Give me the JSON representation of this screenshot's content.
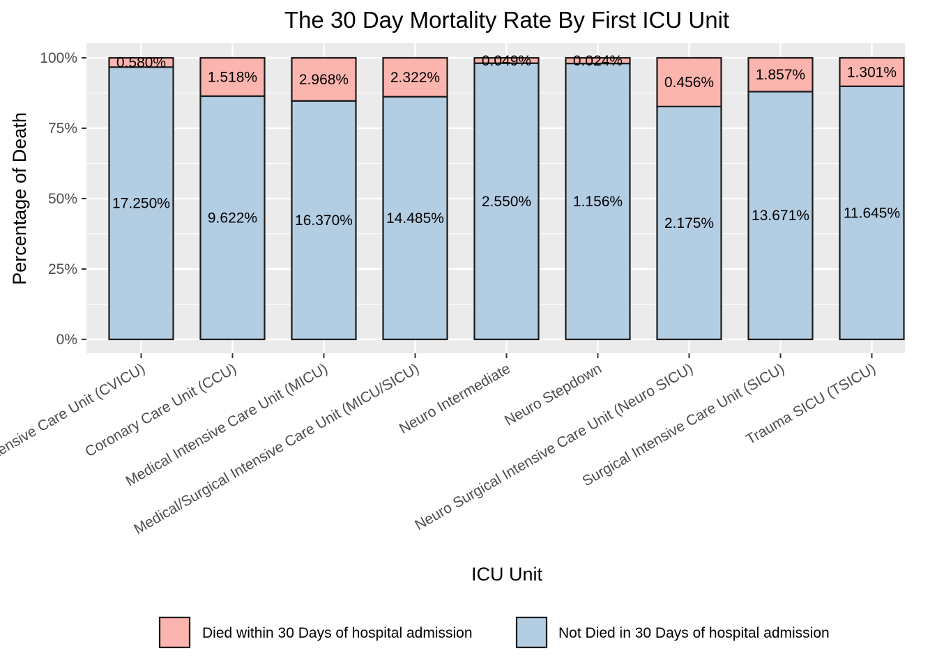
{
  "chart_data": {
    "type": "bar",
    "stacked": true,
    "percent_stacked": true,
    "title": "The 30 Day Mortality Rate By First ICU Unit",
    "xlabel": "ICU Unit",
    "ylabel": "Percentage of Death",
    "ylim": [
      0,
      100
    ],
    "yticks": [
      "0%",
      "25%",
      "50%",
      "75%",
      "100%"
    ],
    "ytick_values": [
      0,
      25,
      50,
      75,
      100
    ],
    "grid": true,
    "legend_position": "bottom",
    "categories": [
      "Cardiac Vascular Intensive Care Unit (CVICU)",
      "Coronary Care Unit (CCU)",
      "Medical Intensive Care Unit (MICU)",
      "Medical/Surgical Intensive Care Unit (MICU/SICU)",
      "Neuro Intermediate",
      "Neuro Stepdown",
      "Neuro Surgical Intensive Care Unit (Neuro SICU)",
      "Surgical Intensive Care Unit (SICU)",
      "Trauma SICU (TSICU)"
    ],
    "series": [
      {
        "name": "Died within 30 Days of hospital admission",
        "color": "#FBB4AE",
        "values": [
          3.3,
          13.6,
          15.3,
          13.8,
          1.9,
          2.0,
          17.3,
          12.0,
          10.1
        ],
        "labels": [
          "0.580%",
          "1.518%",
          "2.968%",
          "2.322%",
          "0.049%",
          "0.024%",
          "0.456%",
          "1.857%",
          "1.301%"
        ]
      },
      {
        "name": "Not Died in 30 Days of hospital admission",
        "color": "#B3CDE3",
        "values": [
          96.7,
          86.4,
          84.7,
          86.2,
          98.1,
          98.0,
          82.7,
          88.0,
          89.9
        ],
        "labels": [
          "17.250%",
          "9.622%",
          "16.370%",
          "14.485%",
          "2.550%",
          "1.156%",
          "2.175%",
          "13.671%",
          "11.645%"
        ]
      }
    ]
  }
}
